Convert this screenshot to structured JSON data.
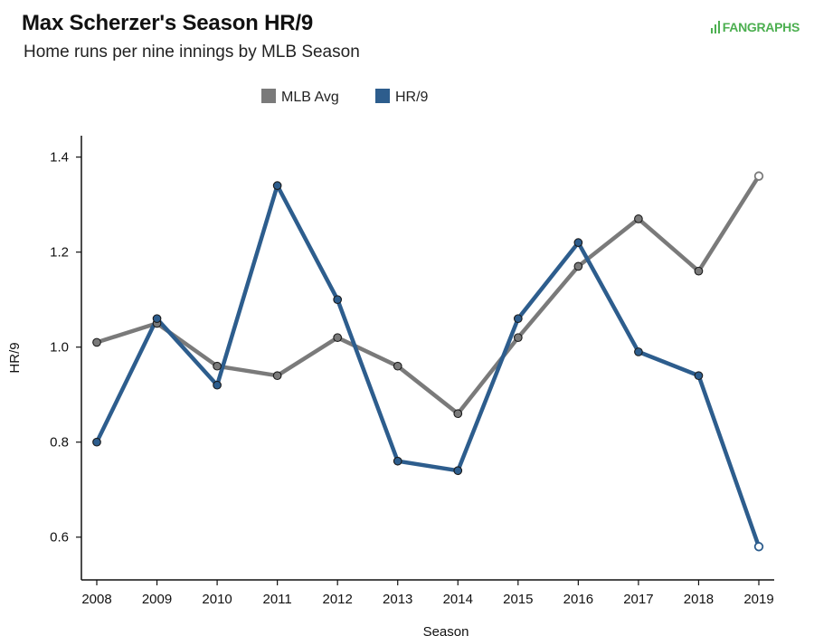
{
  "header": {
    "title": "Max Scherzer's Season HR/9",
    "subtitle": "Home runs per nine innings by MLB Season",
    "brand": "FANGRAPHS"
  },
  "colors": {
    "mlb_avg": "#7a7a7a",
    "hr9": "#2d5d8d",
    "axis": "#111111"
  },
  "chart_data": {
    "type": "line",
    "title": "Max Scherzer's Season HR/9",
    "subtitle": "Home runs per nine innings by MLB Season",
    "xlabel": "Season",
    "ylabel": "HR/9",
    "x": [
      "2008",
      "2009",
      "2010",
      "2011",
      "2012",
      "2013",
      "2014",
      "2015",
      "2016",
      "2017",
      "2018",
      "2019"
    ],
    "ylim": [
      0.51,
      1.445
    ],
    "yticks": [
      "0.6",
      "0.8",
      "1.0",
      "1.2",
      "1.4"
    ],
    "grid": false,
    "legend_position": "top-center",
    "series": [
      {
        "name": "MLB Avg",
        "color": "#7a7a7a",
        "values": [
          1.01,
          1.05,
          0.96,
          0.94,
          1.02,
          0.96,
          0.86,
          1.02,
          1.17,
          1.27,
          1.16,
          1.36
        ],
        "last_point_hollow": true
      },
      {
        "name": "HR/9",
        "color": "#2d5d8d",
        "values": [
          0.8,
          1.06,
          0.92,
          1.34,
          1.1,
          0.76,
          0.74,
          1.06,
          1.22,
          0.99,
          0.94,
          0.58
        ],
        "last_point_hollow": true
      }
    ]
  }
}
